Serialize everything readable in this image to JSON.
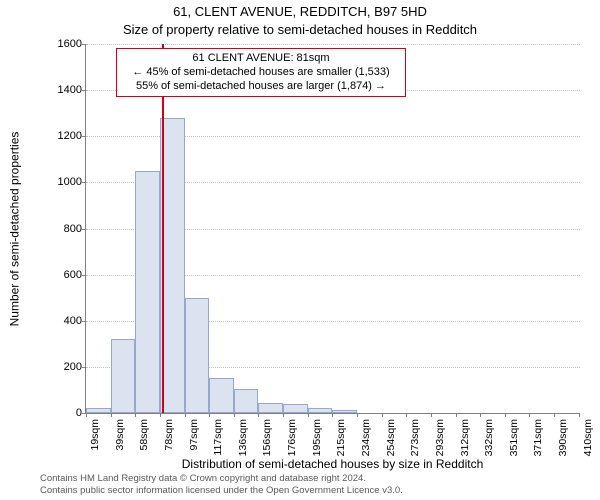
{
  "titles": {
    "line1": "61, CLENT AVENUE, REDDITCH, B97 5HD",
    "line2": "Size of property relative to semi-detached houses in Redditch"
  },
  "axes": {
    "ylabel": "Number of semi-detached properties",
    "xlabel": "Distribution of semi-detached houses by size in Redditch",
    "ylim": [
      0,
      1600
    ],
    "yticks": [
      0,
      200,
      400,
      600,
      800,
      1000,
      1200,
      1400,
      1600
    ],
    "grid_color": "#c0c0c0",
    "axis_color": "#808080",
    "label_fontsize": 12,
    "tick_fontsize": 11
  },
  "chart": {
    "type": "histogram",
    "background_color": "#ffffff",
    "bar_fill": "#dbe2f0",
    "bar_stroke": "#96a7d0",
    "marker_color": "#d4001a",
    "bin_width_sqm": 20,
    "x_start_sqm": 19,
    "x_end_sqm": 420,
    "marker_sqm": 81,
    "xtick_labels": [
      "19sqm",
      "39sqm",
      "58sqm",
      "78sqm",
      "97sqm",
      "117sqm",
      "136sqm",
      "156sqm",
      "176sqm",
      "195sqm",
      "215sqm",
      "234sqm",
      "254sqm",
      "273sqm",
      "293sqm",
      "312sqm",
      "332sqm",
      "351sqm",
      "371sqm",
      "390sqm",
      "410sqm"
    ],
    "bars": [
      20,
      320,
      1050,
      1280,
      500,
      150,
      105,
      45,
      40,
      20,
      15,
      0,
      0,
      0,
      0,
      0,
      0,
      0,
      0,
      0
    ]
  },
  "annotation": {
    "line1": "61 CLENT AVENUE: 81sqm",
    "line2": "← 45% of semi-detached houses are smaller (1,533)",
    "line3": "55% of semi-detached houses are larger (1,874) →",
    "border_color": "#d4001a"
  },
  "footer": {
    "line1": "Contains HM Land Registry data © Crown copyright and database right 2024.",
    "line2": "Contains public sector information licensed under the Open Government Licence v3.0."
  },
  "style": {
    "title_fontsize": 13,
    "footer_color": "#5a5a5a",
    "footer_fontsize": 9.5
  }
}
